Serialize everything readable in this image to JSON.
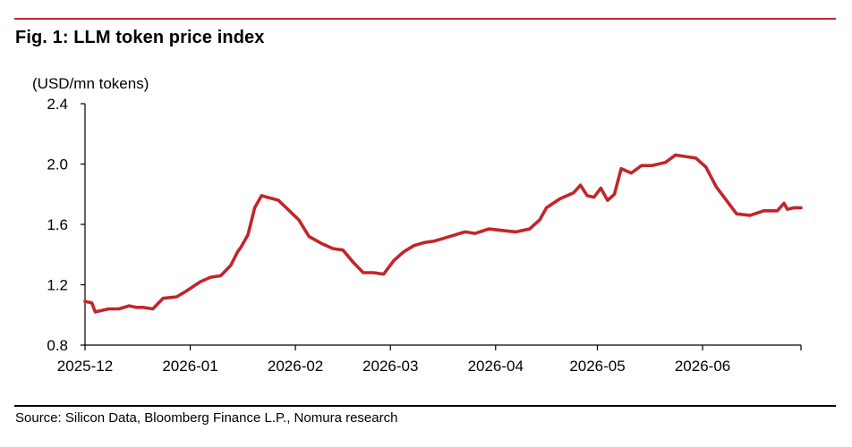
{
  "figure": {
    "title": "Fig. 1: LLM token price index",
    "source": "Source: Silicon Data, Bloomberg Finance L.P., Nomura research"
  },
  "colors": {
    "line": "#c0262c",
    "rule": "#c0262c",
    "axis": "#000000"
  },
  "chart_data": {
    "type": "line",
    "title": "Fig. 1: LLM token price index",
    "ylabel": "(USD/mn tokens)",
    "xlabel": "",
    "ylim": [
      0.8,
      2.4
    ],
    "yticks": [
      0.8,
      1.2,
      1.6,
      2.0,
      2.4
    ],
    "ytick_labels": [
      "0.8",
      "1.2",
      "1.6",
      "2.0",
      "2.4"
    ],
    "xlim": [
      "2025-12-01",
      "2026-06-30"
    ],
    "xticks": [
      "2025-12-01",
      "2026-01-01",
      "2026-02-01",
      "2026-03-01",
      "2026-04-01",
      "2026-05-01",
      "2026-06-01"
    ],
    "xtick_labels": [
      "2025-12",
      "2026-01",
      "2026-02",
      "2026-03",
      "2026-04",
      "2026-05",
      "2026-06"
    ],
    "grid": false,
    "legend": "none",
    "series": [
      {
        "name": "",
        "x": [
          "2025-12-01",
          "2025-12-03",
          "2025-12-04",
          "2025-12-08",
          "2025-12-11",
          "2025-12-14",
          "2025-12-16",
          "2025-12-18",
          "2025-12-21",
          "2025-12-24",
          "2025-12-28",
          "2025-12-31",
          "2026-01-04",
          "2026-01-07",
          "2026-01-10",
          "2026-01-13",
          "2026-01-15",
          "2026-01-16",
          "2026-01-18",
          "2026-01-20",
          "2026-01-22",
          "2026-01-27",
          "2026-02-02",
          "2026-02-05",
          "2026-02-09",
          "2026-02-12",
          "2026-02-15",
          "2026-02-18",
          "2026-02-21",
          "2026-02-24",
          "2026-02-27",
          "2026-03-02",
          "2026-03-05",
          "2026-03-08",
          "2026-03-11",
          "2026-03-14",
          "2026-03-17",
          "2026-03-20",
          "2026-03-23",
          "2026-03-26",
          "2026-03-30",
          "2026-04-03",
          "2026-04-07",
          "2026-04-11",
          "2026-04-14",
          "2026-04-16",
          "2026-04-20",
          "2026-04-24",
          "2026-04-26",
          "2026-04-28",
          "2026-04-30",
          "2026-05-02",
          "2026-05-04",
          "2026-05-06",
          "2026-05-08",
          "2026-05-11",
          "2026-05-14",
          "2026-05-17",
          "2026-05-21",
          "2026-05-24",
          "2026-05-27",
          "2026-05-30",
          "2026-06-02",
          "2026-06-05",
          "2026-06-08",
          "2026-06-11",
          "2026-06-15",
          "2026-06-19",
          "2026-06-23",
          "2026-06-25",
          "2026-06-26",
          "2026-06-28",
          "2026-06-30"
        ],
        "y": [
          1.09,
          1.08,
          1.02,
          1.04,
          1.04,
          1.06,
          1.05,
          1.05,
          1.04,
          1.11,
          1.12,
          1.16,
          1.22,
          1.25,
          1.26,
          1.33,
          1.42,
          1.45,
          1.53,
          1.71,
          1.79,
          1.76,
          1.63,
          1.52,
          1.47,
          1.44,
          1.43,
          1.35,
          1.28,
          1.28,
          1.27,
          1.36,
          1.42,
          1.46,
          1.48,
          1.49,
          1.51,
          1.53,
          1.55,
          1.54,
          1.57,
          1.56,
          1.55,
          1.57,
          1.63,
          1.71,
          1.77,
          1.81,
          1.86,
          1.79,
          1.78,
          1.84,
          1.76,
          1.8,
          1.97,
          1.94,
          1.99,
          1.99,
          2.01,
          2.06,
          2.05,
          2.04,
          1.98,
          1.85,
          1.76,
          1.67,
          1.66,
          1.69,
          1.69,
          1.74,
          1.7,
          1.71,
          1.71
        ]
      }
    ]
  }
}
